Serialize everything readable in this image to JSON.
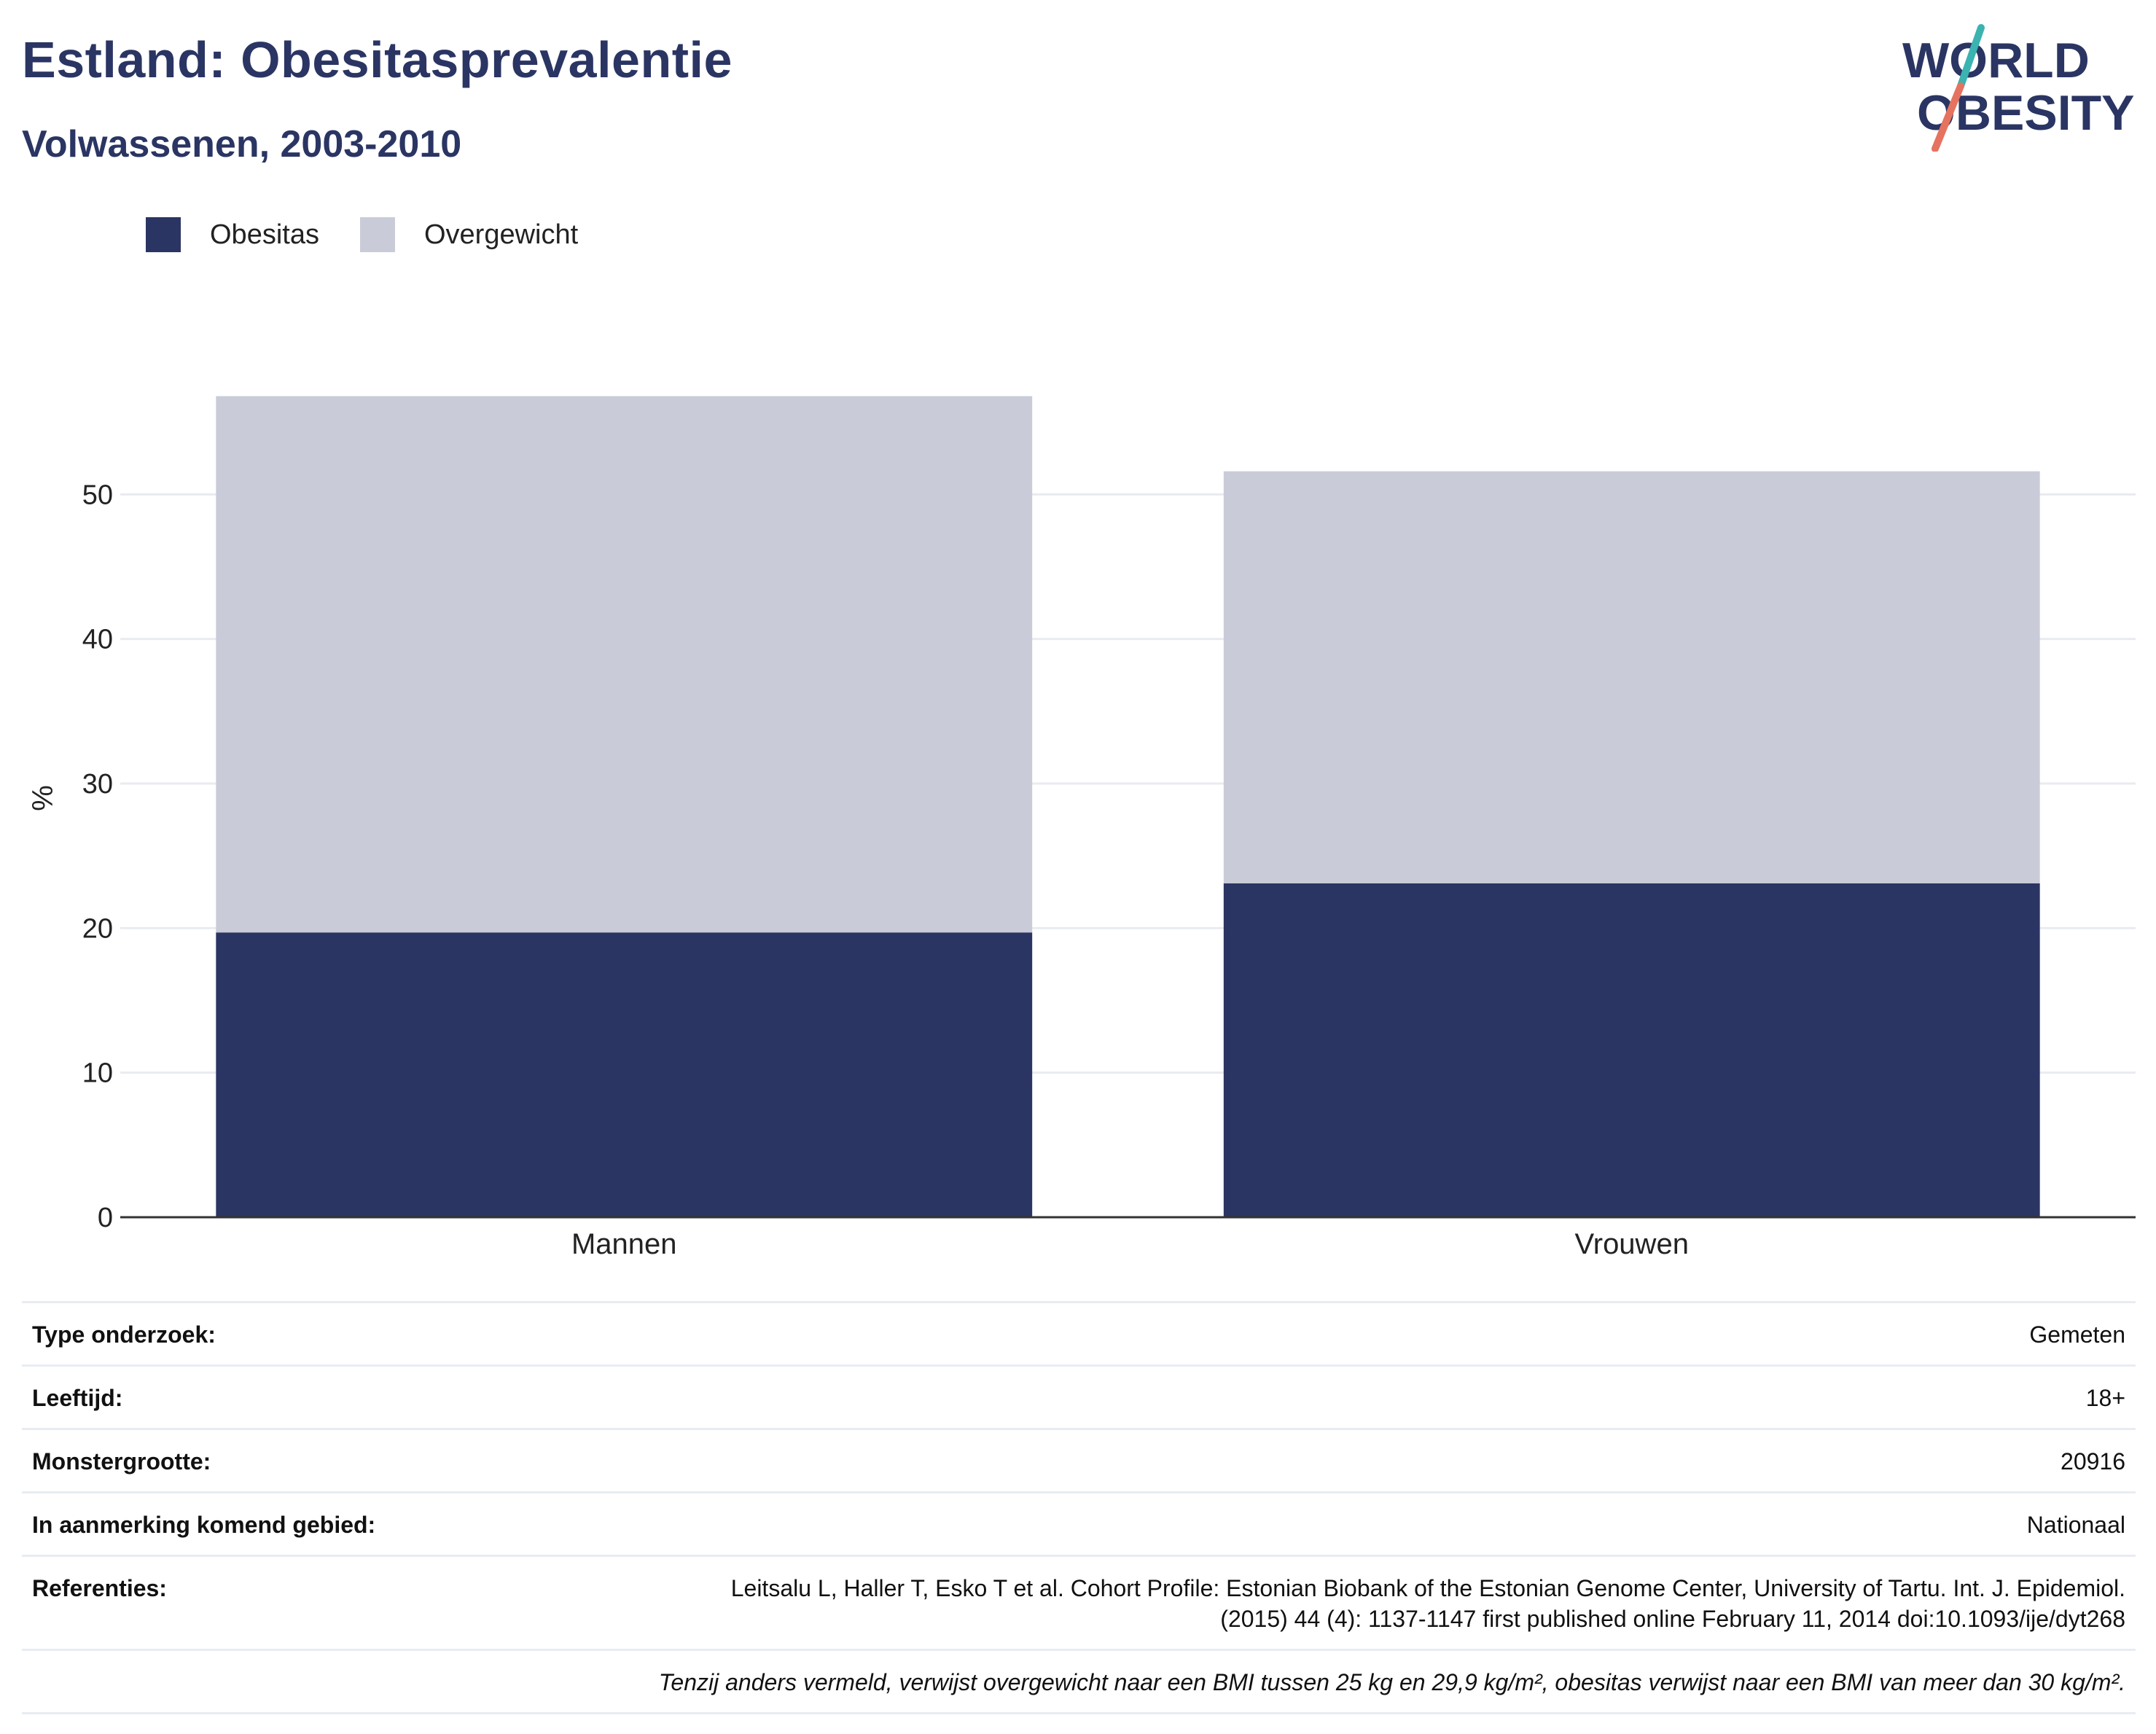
{
  "header": {
    "title": "Estland: Obesitasprevalentie",
    "subtitle": "Volwassenen, 2003-2010"
  },
  "logo": {
    "line1": "WORLD",
    "line2": "OBESITY",
    "colors": {
      "text": "#2a3563",
      "teal": "#3bb3b0",
      "coral": "#e5735f"
    }
  },
  "legend": {
    "items": [
      {
        "label": "Obesitas",
        "color": "#2a3563"
      },
      {
        "label": "Overgewicht",
        "color": "#c9ccd8"
      }
    ]
  },
  "chart_data": {
    "type": "bar",
    "stacked": true,
    "categories": [
      "Mannen",
      "Vrouwen"
    ],
    "series": [
      {
        "name": "Obesitas",
        "color": "#2a3563",
        "values": [
          19.7,
          23.1
        ]
      },
      {
        "name": "Overgewicht",
        "color": "#c9ccd8",
        "values": [
          37.1,
          28.5
        ]
      }
    ],
    "ylabel": "%",
    "xlabel": "",
    "ylim": [
      0,
      60
    ],
    "yticks": [
      0,
      10,
      20,
      30,
      40,
      50
    ],
    "grid": true,
    "legend_position": "top-left"
  },
  "info": {
    "rows": [
      {
        "key": "Type onderzoek:",
        "value": "Gemeten"
      },
      {
        "key": "Leeftijd:",
        "value": "18+"
      },
      {
        "key": "Monstergrootte:",
        "value": "20916"
      },
      {
        "key": "In aanmerking komend gebied:",
        "value": "Nationaal"
      },
      {
        "key": "Referenties:",
        "value_lines": [
          "Leitsalu L, Haller T, Esko T et al. Cohort Profile: Estonian Biobank of the Estonian Genome Center, University of Tartu. Int. J. Epidemiol.",
          "(2015) 44 (4): 1137-1147 first published online February 11, 2014 doi:10.1093/ije/dyt268"
        ]
      }
    ],
    "note": "Tenzij anders vermeld, verwijst overgewicht naar een BMI tussen 25 kg en 29,9 kg/m², obesitas verwijst naar een BMI van meer dan 30 kg/m²."
  }
}
